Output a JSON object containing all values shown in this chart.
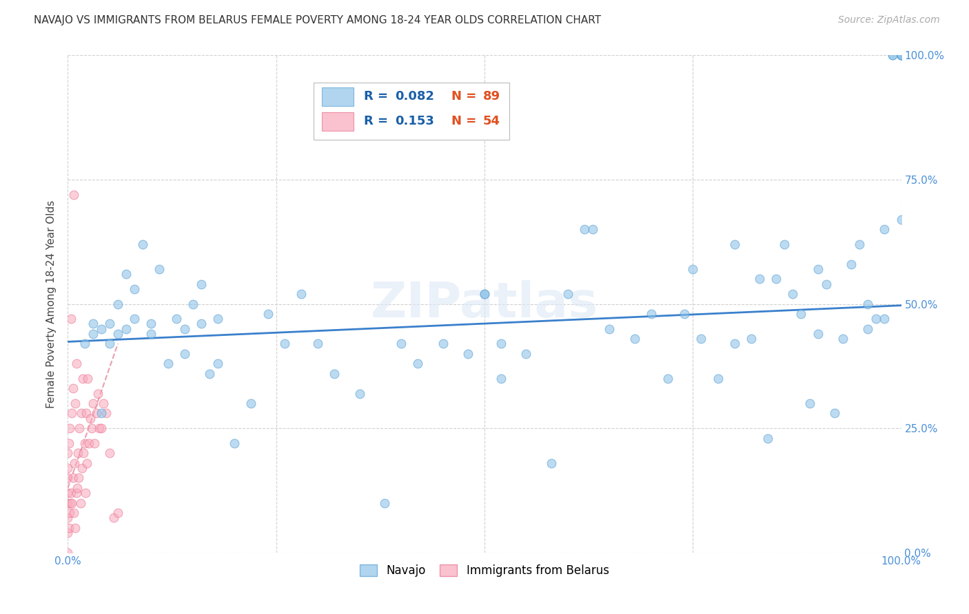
{
  "title": "NAVAJO VS IMMIGRANTS FROM BELARUS FEMALE POVERTY AMONG 18-24 YEAR OLDS CORRELATION CHART",
  "source": "Source: ZipAtlas.com",
  "ylabel": "Female Poverty Among 18-24 Year Olds",
  "xlim": [
    0,
    1.0
  ],
  "ylim": [
    0,
    1.0
  ],
  "xticks": [
    0.0,
    0.25,
    0.5,
    0.75,
    1.0
  ],
  "yticks": [
    0.0,
    0.25,
    0.5,
    0.75,
    1.0
  ],
  "xticklabels": [
    "0.0%",
    "",
    "",
    "",
    "100.0%"
  ],
  "yticklabels": [
    "0.0%",
    "25.0%",
    "50.0%",
    "75.0%",
    "100.0%"
  ],
  "navajo_R": 0.082,
  "navajo_N": 89,
  "belarus_R": 0.153,
  "belarus_N": 54,
  "navajo_color": "#90c4e8",
  "navajo_edge_color": "#5a9fd4",
  "belarus_color": "#f9a8ba",
  "belarus_edge_color": "#e87090",
  "navajo_scatter_x": [
    0.02,
    0.03,
    0.04,
    0.04,
    0.05,
    0.06,
    0.07,
    0.07,
    0.08,
    0.09,
    0.1,
    0.11,
    0.12,
    0.13,
    0.14,
    0.15,
    0.16,
    0.17,
    0.18,
    0.2,
    0.22,
    0.24,
    0.26,
    0.28,
    0.3,
    0.32,
    0.35,
    0.38,
    0.4,
    0.42,
    0.45,
    0.48,
    0.5,
    0.52,
    0.55,
    0.58,
    0.6,
    0.62,
    0.65,
    0.68,
    0.7,
    0.72,
    0.74,
    0.76,
    0.78,
    0.8,
    0.82,
    0.84,
    0.85,
    0.86,
    0.87,
    0.88,
    0.89,
    0.9,
    0.91,
    0.92,
    0.93,
    0.94,
    0.95,
    0.96,
    0.97,
    0.98,
    0.98,
    0.99,
    0.99,
    1.0,
    1.0,
    1.0,
    1.0,
    1.0,
    1.0,
    1.0,
    1.0,
    0.03,
    0.05,
    0.06,
    0.08,
    0.1,
    0.14,
    0.16,
    0.18,
    0.5,
    0.52,
    0.63,
    0.75,
    0.8,
    0.83,
    0.9,
    0.96
  ],
  "navajo_scatter_y": [
    0.42,
    0.46,
    0.45,
    0.28,
    0.46,
    0.5,
    0.56,
    0.45,
    0.53,
    0.62,
    0.44,
    0.57,
    0.38,
    0.47,
    0.4,
    0.5,
    0.54,
    0.36,
    0.47,
    0.22,
    0.3,
    0.48,
    0.42,
    0.52,
    0.42,
    0.36,
    0.32,
    0.1,
    0.42,
    0.38,
    0.42,
    0.4,
    0.52,
    0.42,
    0.4,
    0.18,
    0.52,
    0.65,
    0.45,
    0.43,
    0.48,
    0.35,
    0.48,
    0.43,
    0.35,
    0.62,
    0.43,
    0.23,
    0.55,
    0.62,
    0.52,
    0.48,
    0.3,
    0.57,
    0.54,
    0.28,
    0.43,
    0.58,
    0.62,
    0.45,
    0.47,
    0.47,
    0.65,
    1.0,
    1.0,
    1.0,
    1.0,
    1.0,
    1.0,
    1.0,
    1.0,
    1.0,
    0.67,
    0.44,
    0.42,
    0.44,
    0.47,
    0.46,
    0.45,
    0.46,
    0.38,
    0.52,
    0.35,
    0.65,
    0.57,
    0.42,
    0.55,
    0.44,
    0.5
  ],
  "belarus_scatter_x": [
    0.0,
    0.0,
    0.0,
    0.0,
    0.0,
    0.0,
    0.0,
    0.0,
    0.001,
    0.001,
    0.002,
    0.002,
    0.003,
    0.004,
    0.004,
    0.005,
    0.005,
    0.006,
    0.006,
    0.007,
    0.007,
    0.008,
    0.009,
    0.009,
    0.01,
    0.01,
    0.011,
    0.012,
    0.013,
    0.014,
    0.015,
    0.016,
    0.017,
    0.018,
    0.019,
    0.02,
    0.021,
    0.022,
    0.023,
    0.024,
    0.025,
    0.027,
    0.029,
    0.03,
    0.032,
    0.034,
    0.036,
    0.038,
    0.04,
    0.043,
    0.046,
    0.05,
    0.055,
    0.06
  ],
  "belarus_scatter_y": [
    0.0,
    0.04,
    0.07,
    0.1,
    0.12,
    0.15,
    0.17,
    0.2,
    0.05,
    0.22,
    0.08,
    0.25,
    0.1,
    0.12,
    0.47,
    0.1,
    0.28,
    0.15,
    0.33,
    0.08,
    0.72,
    0.18,
    0.05,
    0.3,
    0.12,
    0.38,
    0.13,
    0.2,
    0.15,
    0.25,
    0.1,
    0.28,
    0.17,
    0.35,
    0.2,
    0.22,
    0.12,
    0.28,
    0.18,
    0.35,
    0.22,
    0.27,
    0.25,
    0.3,
    0.22,
    0.28,
    0.32,
    0.25,
    0.25,
    0.3,
    0.28,
    0.2,
    0.07,
    0.08
  ],
  "watermark": "ZIPatlas",
  "background_color": "#ffffff",
  "grid_color": "#d0d0d0",
  "navajo_line_color": "#3a80cc",
  "navajo_line_x0": 0.0,
  "navajo_line_x1": 1.0,
  "navajo_line_y0": 0.424,
  "navajo_line_y1": 0.497,
  "belarus_line_color": "#e8a0b0",
  "belarus_line_x0": 0.0,
  "belarus_line_x1": 0.06,
  "belarus_line_y0": 0.13,
  "belarus_line_y1": 0.42,
  "legend_R_color": "#1a5fa8",
  "legend_N_color": "#e05020",
  "marker_size": 85,
  "title_fontsize": 11,
  "ylabel_fontsize": 11,
  "tick_fontsize": 11,
  "source_fontsize": 10
}
